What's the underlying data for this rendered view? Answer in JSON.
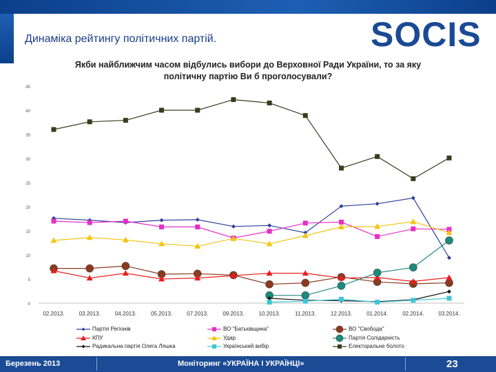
{
  "header": {
    "slide_title": "Динаміка рейтингу політичних партій.",
    "logo_text": "SOCIS"
  },
  "chart_data": {
    "type": "line",
    "title_line1": "Якби найближчим часом відбулись вибори до Верховної Ради України, то за яку",
    "title_line2": "політичну партію Ви б проголосували?",
    "categories": [
      "02.2013.",
      "03.2013.",
      "04.2013.",
      "05.2013.",
      "07.2013.",
      "09.2013.",
      "10.2013.",
      "11.2013.",
      "12.2013.",
      "01.2014.",
      "02.2014.",
      "03.2014."
    ],
    "ylim": [
      0,
      45
    ],
    "yticks": [
      0,
      5,
      10,
      15,
      20,
      25,
      30,
      35,
      40,
      45
    ],
    "grid": false,
    "legend_position": "bottom",
    "series": [
      {
        "name": "Партія Регіонів",
        "color": "#2e3f9a",
        "marker": "diamond",
        "values": [
          17.6,
          17.2,
          16.7,
          17.2,
          17.3,
          15.9,
          16.1,
          14.6,
          20.1,
          20.6,
          21.8,
          9.4
        ]
      },
      {
        "name": "ВО \"Батьківщина\"",
        "color": "#e62ec8",
        "marker": "square",
        "values": [
          17.0,
          16.7,
          17.0,
          15.8,
          15.8,
          13.5,
          14.9,
          16.6,
          16.8,
          13.8,
          15.4,
          15.3
        ]
      },
      {
        "name": "ВО \"Свобода\"",
        "color": "#8b3a1e",
        "marker": "circle",
        "values": [
          7.2,
          7.2,
          7.7,
          6.0,
          6.1,
          5.8,
          3.9,
          4.2,
          5.4,
          4.4,
          4.0,
          4.2
        ]
      },
      {
        "name": "КПУ",
        "color": "#e81e1e",
        "marker": "triangle",
        "values": [
          6.7,
          5.2,
          6.2,
          5.0,
          5.2,
          5.7,
          6.2,
          6.2,
          5.2,
          5.3,
          4.5,
          5.3
        ]
      },
      {
        "name": "Удар",
        "color": "#f2c412",
        "marker": "triangle",
        "values": [
          13.0,
          13.6,
          13.1,
          12.3,
          11.8,
          13.4,
          12.3,
          14.0,
          15.8,
          15.9,
          16.9,
          14.6
        ]
      },
      {
        "name": "Партія Солідарність",
        "color": "#1b8a7a",
        "marker": "circle",
        "values": [
          null,
          null,
          null,
          null,
          null,
          null,
          1.6,
          1.6,
          3.6,
          6.3,
          7.4,
          13.0
        ]
      },
      {
        "name": "Радикальна партія Олега Ляшка",
        "color": "#111111",
        "marker": "diamond",
        "values": [
          null,
          null,
          null,
          null,
          null,
          null,
          1.0,
          0.6,
          0.5,
          0.3,
          0.7,
          2.4
        ]
      },
      {
        "name": "Український вибір",
        "color": "#3fc6d6",
        "marker": "square",
        "values": [
          null,
          null,
          null,
          null,
          null,
          null,
          0.2,
          0.4,
          0.8,
          0.2,
          0.6,
          1.0
        ]
      },
      {
        "name": "Електоральне болото",
        "color": "#3a3a1e",
        "marker": "square",
        "values": [
          36.0,
          37.6,
          37.9,
          40.0,
          40.0,
          42.2,
          41.5,
          38.9,
          28.0,
          30.4,
          25.8,
          30.1
        ]
      }
    ]
  },
  "footer": {
    "date": "Березень 2013",
    "monitoring": "Моніторинг «УКРАЇНА І УКРАЇНЦІ»",
    "page": "23"
  },
  "colors": {
    "brand_blue": "#1b4b95",
    "logo_blue": "#1a4a94"
  }
}
